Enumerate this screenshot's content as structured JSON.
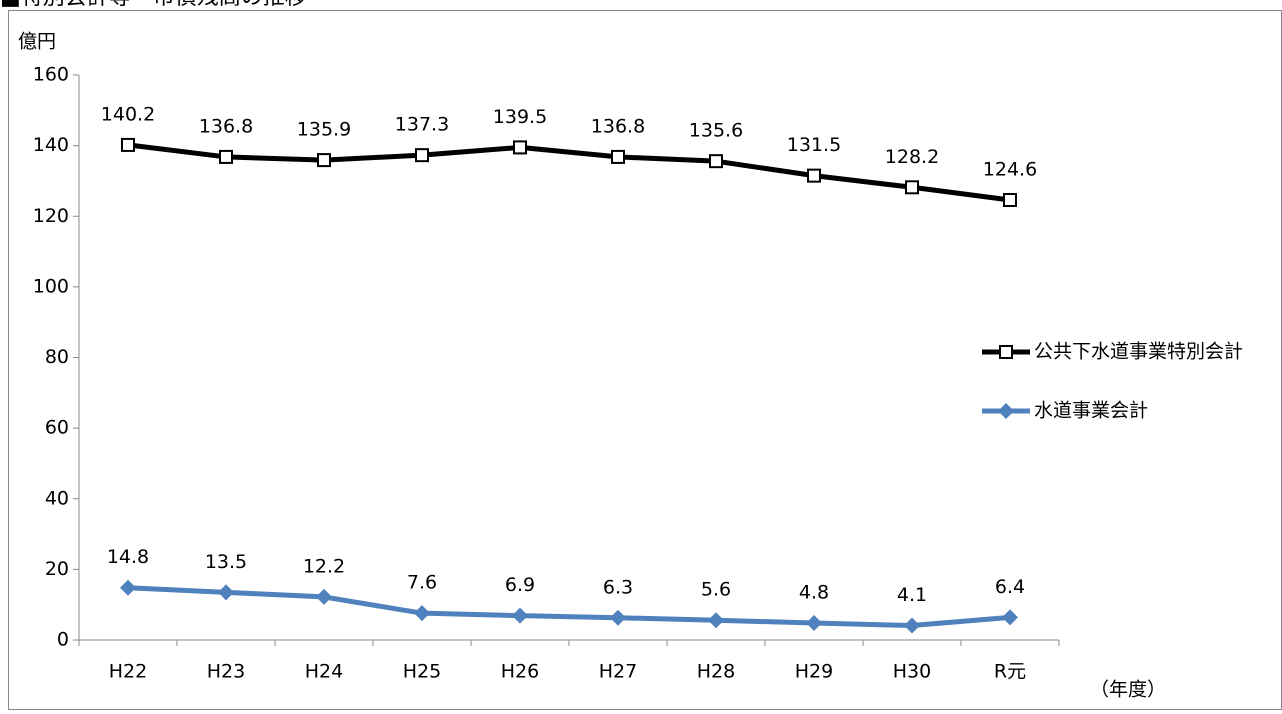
{
  "chart_data": {
    "type": "line",
    "title": "■特別会計等　市債残高の推移",
    "y_label": "億円",
    "x_label": "（年度）",
    "categories": [
      "H22",
      "H23",
      "H24",
      "H25",
      "H26",
      "H27",
      "H28",
      "H29",
      "H30",
      "R元"
    ],
    "series": [
      {
        "name": "公共下水道事業特別会計",
        "color": "#000000",
        "marker": "square",
        "values": [
          140.2,
          136.8,
          135.9,
          137.3,
          139.5,
          136.8,
          135.6,
          131.5,
          128.2,
          124.6
        ]
      },
      {
        "name": "水道事業会計",
        "color": "#4f81bd",
        "marker": "diamond",
        "values": [
          14.8,
          13.5,
          12.2,
          7.6,
          6.9,
          6.3,
          5.6,
          4.8,
          4.1,
          6.4
        ]
      }
    ],
    "ylim": [
      0,
      160
    ],
    "yticks": [
      0,
      20,
      40,
      60,
      80,
      100,
      120,
      140,
      160
    ],
    "grid": false,
    "legend": "right"
  }
}
